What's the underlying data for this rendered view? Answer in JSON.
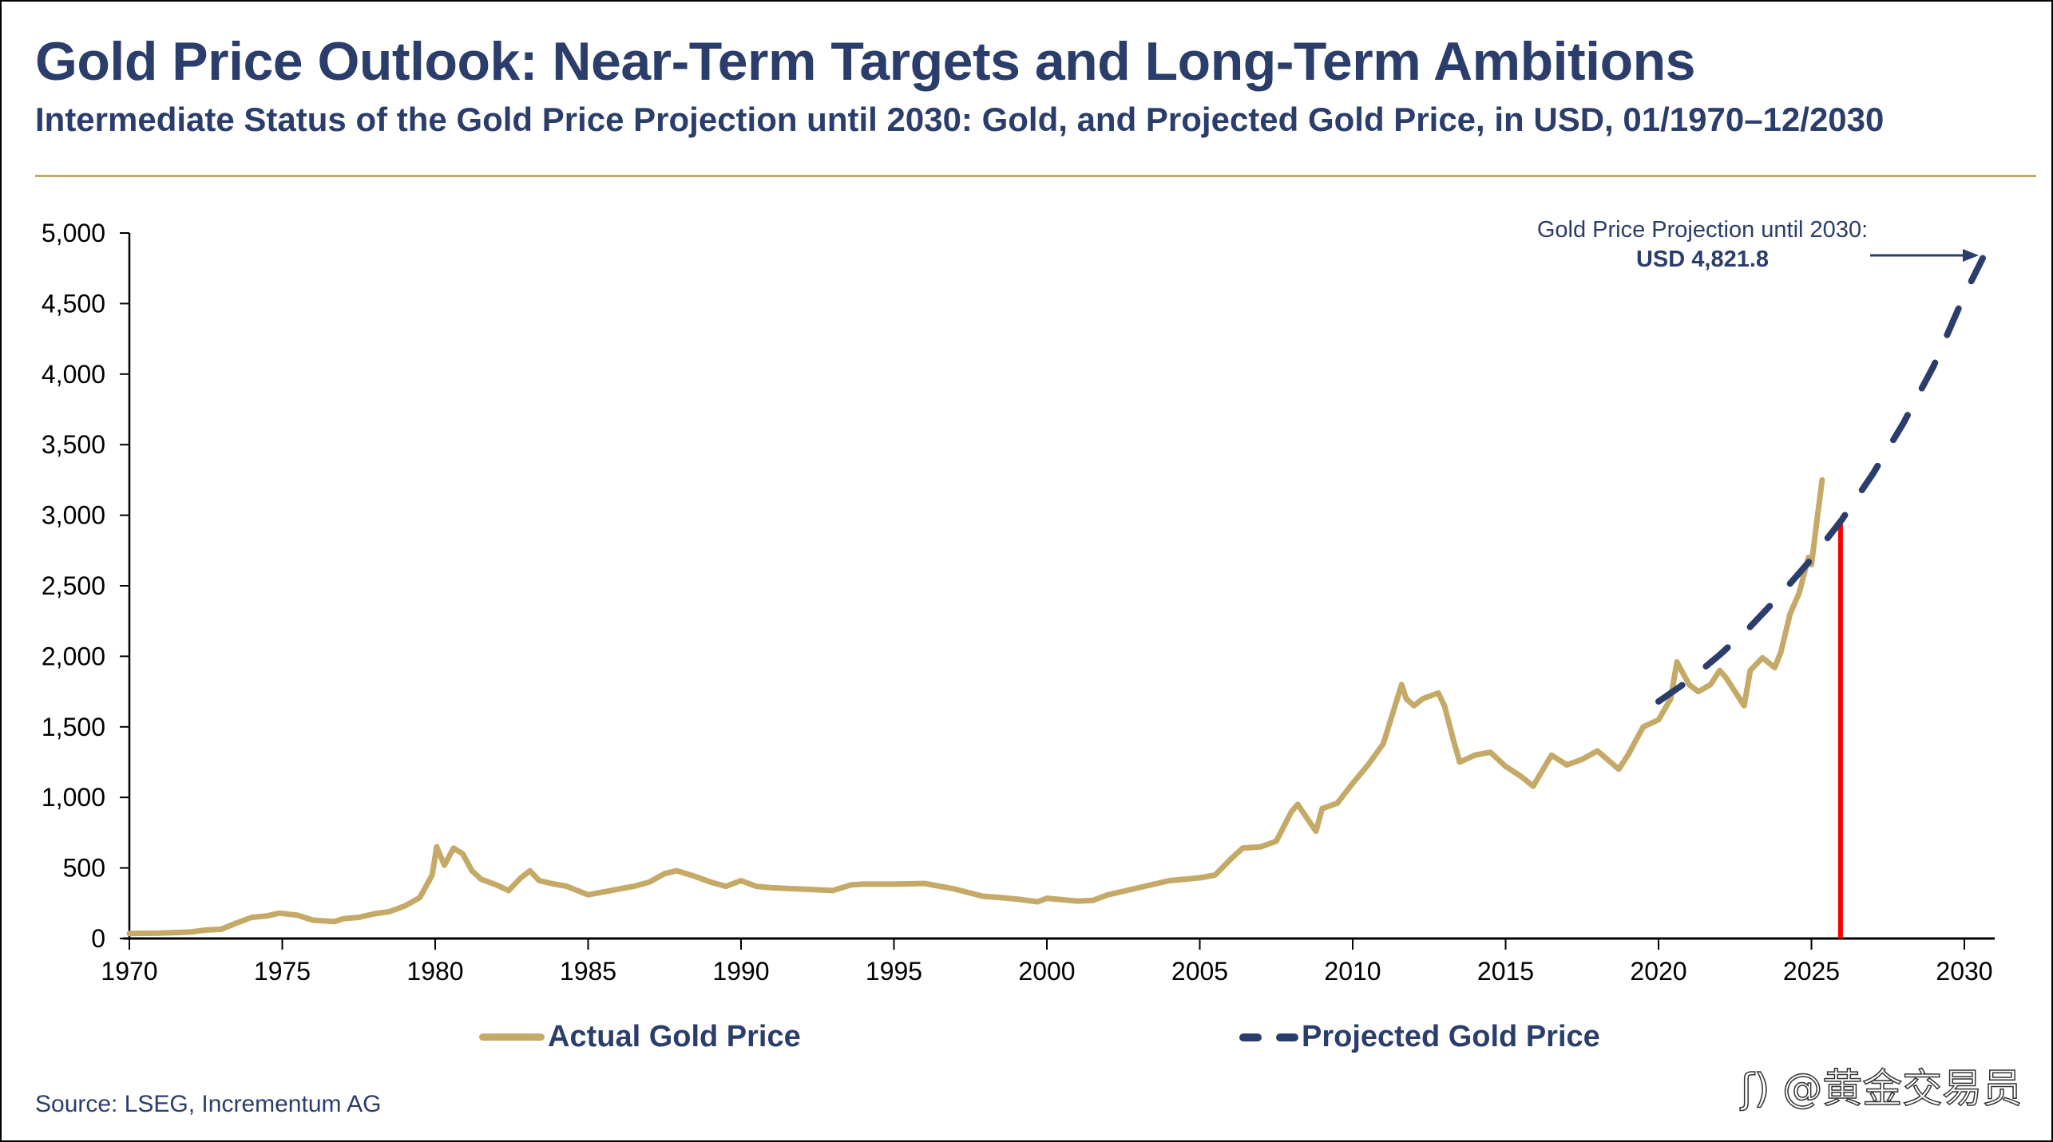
{
  "header": {
    "title": "Gold Price Outlook: Near-Term Targets and Long-Term Ambitions",
    "subtitle": "Intermediate Status of the Gold Price Projection until 2030: Gold, and Projected Gold Price, in USD, 01/1970–12/2030"
  },
  "annotation": {
    "line1": "Gold Price Projection until 2030:",
    "line2": "USD 4,821.8"
  },
  "legend": {
    "actual": "Actual Gold Price",
    "projected": "Projected Gold Price"
  },
  "source": "Source: LSEG, Incrementum AG",
  "watermark": "@黄金交易员",
  "colors": {
    "actual": "#c4aa66",
    "projected": "#2b3d6b",
    "marker": "#ff0000",
    "text": "#2b3d6b"
  },
  "chart_data": {
    "type": "line",
    "title": "Gold Price Outlook: Near-Term Targets and Long-Term Ambitions",
    "xlabel": "",
    "ylabel": "",
    "xlim": [
      1970,
      2030.9
    ],
    "ylim": [
      0,
      5000
    ],
    "x_ticks": [
      1970,
      1975,
      1980,
      1985,
      1990,
      1995,
      2000,
      2005,
      2010,
      2015,
      2020,
      2025,
      2030
    ],
    "y_ticks": [
      0,
      500,
      1000,
      1500,
      2000,
      2500,
      3000,
      3500,
      4000,
      4500,
      5000
    ],
    "y_tick_labels": [
      "0",
      "500",
      "1,000",
      "1,500",
      "2,000",
      "2,500",
      "3,000",
      "3,500",
      "4,000",
      "4,500",
      "5,000"
    ],
    "grid": false,
    "legend_position": "bottom",
    "series": [
      {
        "name": "Actual Gold Price",
        "style": "solid",
        "x": [
          1970.0,
          1971.0,
          1972.0,
          1972.5,
          1973.0,
          1973.5,
          1974.0,
          1974.5,
          1974.9,
          1975.5,
          1976.0,
          1976.7,
          1977.0,
          1977.5,
          1978.0,
          1978.5,
          1979.0,
          1979.5,
          1979.9,
          1980.05,
          1980.3,
          1980.6,
          1980.9,
          1981.2,
          1981.5,
          1982.0,
          1982.4,
          1982.8,
          1983.1,
          1983.4,
          1983.8,
          1984.3,
          1985.0,
          1985.5,
          1986.0,
          1986.5,
          1987.0,
          1987.5,
          1987.9,
          1988.5,
          1989.0,
          1989.5,
          1990.0,
          1990.5,
          1991.0,
          1992.0,
          1993.0,
          1993.6,
          1994.0,
          1995.0,
          1996.0,
          1997.0,
          1997.9,
          1998.5,
          1999.0,
          1999.7,
          2000.0,
          2001.0,
          2001.5,
          2002.0,
          2003.0,
          2004.0,
          2005.0,
          2005.5,
          2006.0,
          2006.4,
          2007.0,
          2007.5,
          2008.0,
          2008.2,
          2008.8,
          2009.0,
          2009.5,
          2010.0,
          2010.5,
          2011.0,
          2011.6,
          2011.75,
          2012.0,
          2012.3,
          2012.8,
          2013.0,
          2013.3,
          2013.5,
          2014.0,
          2014.5,
          2015.0,
          2015.5,
          2015.9,
          2016.5,
          2017.0,
          2017.5,
          2018.0,
          2018.7,
          2019.0,
          2019.5,
          2020.0,
          2020.4,
          2020.6,
          2021.0,
          2021.3,
          2021.7,
          2022.0,
          2022.2,
          2022.8,
          2023.0,
          2023.4,
          2023.8,
          2024.0,
          2024.3,
          2024.6,
          2024.9,
          2025.0,
          2025.2,
          2025.35
        ],
        "values": [
          35,
          38,
          46,
          60,
          65,
          110,
          150,
          160,
          180,
          165,
          130,
          120,
          140,
          150,
          175,
          190,
          230,
          290,
          450,
          650,
          520,
          640,
          600,
          480,
          420,
          380,
          340,
          430,
          480,
          410,
          390,
          370,
          310,
          330,
          350,
          370,
          400,
          460,
          480,
          440,
          400,
          370,
          410,
          370,
          360,
          350,
          340,
          380,
          385,
          385,
          390,
          350,
          300,
          290,
          280,
          260,
          285,
          265,
          270,
          310,
          360,
          410,
          430,
          450,
          560,
          640,
          650,
          690,
          900,
          950,
          760,
          920,
          960,
          1100,
          1230,
          1380,
          1800,
          1700,
          1650,
          1700,
          1740,
          1650,
          1400,
          1250,
          1300,
          1320,
          1220,
          1150,
          1080,
          1300,
          1230,
          1270,
          1330,
          1200,
          1300,
          1500,
          1550,
          1700,
          1960,
          1800,
          1750,
          1800,
          1900,
          1850,
          1650,
          1900,
          1990,
          1920,
          2030,
          2300,
          2450,
          2700,
          2650,
          3000,
          3250
        ]
      },
      {
        "name": "Projected Gold Price",
        "style": "dashed",
        "x": [
          2020.0,
          2021.0,
          2022.0,
          2023.0,
          2024.0,
          2025.0,
          2026.0,
          2027.0,
          2028.0,
          2029.0,
          2030.0,
          2030.6
        ],
        "values": [
          1680,
          1830,
          2010,
          2210,
          2440,
          2690,
          2970,
          3290,
          3650,
          4060,
          4560,
          4822
        ]
      }
    ],
    "marker_line": {
      "x": 2025.95,
      "from": 0,
      "to": 2970,
      "color": "#ff0000"
    },
    "annotations": [
      "Gold Price Projection until 2030:",
      "USD 4,821.8"
    ]
  }
}
